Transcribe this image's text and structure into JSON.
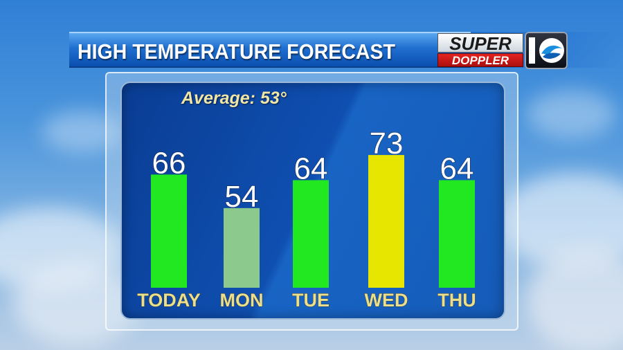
{
  "header": {
    "title": "HIGH TEMPERATURE FORECAST"
  },
  "logo": {
    "line1": "SUPER",
    "line2": "DOPPLER",
    "badge": "10"
  },
  "average_label": "Average: 53°",
  "chart_data": {
    "type": "bar",
    "title": "HIGH TEMPERATURE FORECAST",
    "categories": [
      "TODAY",
      "MON",
      "TUE",
      "WED",
      "THU"
    ],
    "values": [
      66,
      54,
      64,
      73,
      64
    ],
    "bar_colors": [
      "#22e822",
      "#8cc98c",
      "#22e822",
      "#e6e600",
      "#22e822"
    ],
    "annotation": "Average: 53°",
    "grid": false,
    "legend": "none"
  }
}
